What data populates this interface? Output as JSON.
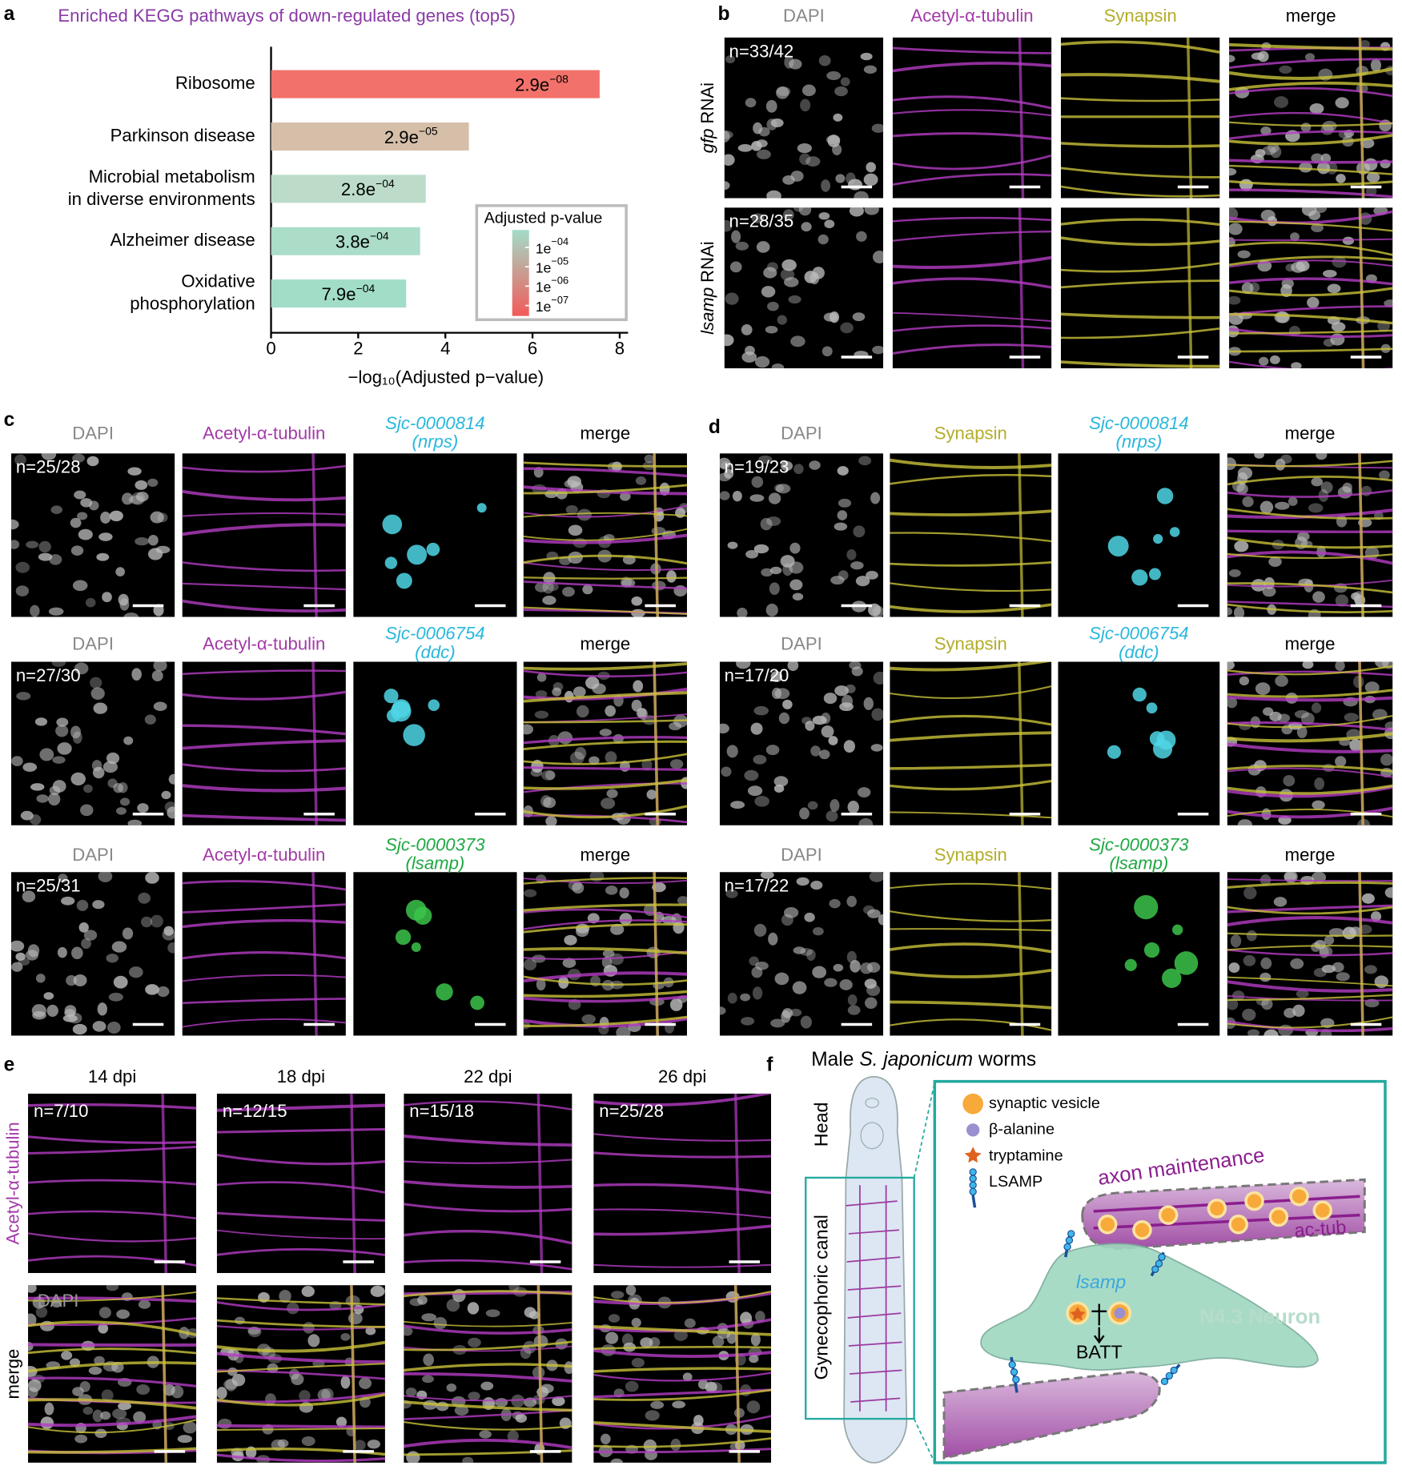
{
  "chart_data": {
    "type": "bar",
    "orientation": "horizontal",
    "title": "Enriched KEGG pathways of down-regulated genes (top5)",
    "categories": [
      "Ribosome",
      "Parkinson disease",
      "Microbial metabolism\nin diverse environments",
      "Alzheimer disease",
      "Oxidative\nphosphorylation"
    ],
    "values": [
      7.54,
      4.54,
      3.55,
      3.42,
      3.1
    ],
    "value_labels": [
      "2.9e−08",
      "2.9e−05",
      "2.8e−04",
      "3.8e−04",
      "7.9e−04"
    ],
    "colors": [
      "#f2716a",
      "#d6bfa9",
      "#bcdcc9",
      "#abddc9",
      "#a2ddc8"
    ],
    "xlim": [
      0,
      8
    ],
    "xticks": [
      0,
      2,
      4,
      6,
      8
    ],
    "xlabel": "−log₁₀(Adjusted p−value)",
    "legend": {
      "title": "Adjusted p-value",
      "lim": [
        0.00079,
        2.9e-08
      ],
      "colors": [
        "#a2ddc8",
        "#f25a5a"
      ],
      "ticks": [
        {
          "value": 0.0001,
          "label": "1e−04"
        },
        {
          "value": 1e-05,
          "label": "1e−05"
        },
        {
          "value": 1e-06,
          "label": "1e−06"
        },
        {
          "value": 1e-07,
          "label": "1e−07"
        }
      ]
    }
  },
  "panel_labels": [
    "a",
    "b",
    "c",
    "d",
    "e",
    "f"
  ],
  "panel_b": {
    "columns": [
      "DAPI",
      "Acetyl-α-tubulin",
      "Synapsin",
      "merge"
    ],
    "rows": [
      {
        "gene": "gfp",
        "suffix": "RNAi",
        "n": "n=33/42"
      },
      {
        "gene": "lsamp",
        "suffix": "RNAi",
        "n": "n=28/35"
      }
    ]
  },
  "panel_c": {
    "rows": [
      {
        "headers": [
          "DAPI",
          "Acetyl-α-tubulin",
          "merge"
        ],
        "probe": "Sjc-0000814",
        "probe_gene": "(nrps)",
        "n": "n=25/28"
      },
      {
        "headers": [
          "DAPI",
          "Acetyl-α-tubulin",
          "merge"
        ],
        "probe": "Sjc-0006754",
        "probe_gene": "(ddc)",
        "n": "n=27/30"
      },
      {
        "headers": [
          "DAPI",
          "Acetyl-α-tubulin",
          "merge"
        ],
        "probe": "Sjc-0000373",
        "probe_gene": "(lsamp)",
        "n": "n=25/31"
      }
    ]
  },
  "panel_d": {
    "rows": [
      {
        "headers": [
          "DAPI",
          "Synapsin",
          "merge"
        ],
        "probe": "Sjc-0000814",
        "probe_gene": "(nrps)",
        "n": "n=19/23"
      },
      {
        "headers": [
          "DAPI",
          "Synapsin",
          "merge"
        ],
        "probe": "Sjc-0006754",
        "probe_gene": "(ddc)",
        "n": "n=17/20"
      },
      {
        "headers": [
          "DAPI",
          "Synapsin",
          "merge"
        ],
        "probe": "Sjc-0000373",
        "probe_gene": "(lsamp)",
        "n": "n=17/22"
      }
    ]
  },
  "panel_e": {
    "columns": [
      "14 dpi",
      "18 dpi",
      "22 dpi",
      "26 dpi"
    ],
    "row_labels": [
      "Acetyl-α-tubulin",
      "merge"
    ],
    "n": [
      "n=7/10",
      "n=12/15",
      "n=15/18",
      "n=25/28"
    ],
    "overlay": "DAPI"
  },
  "panel_f": {
    "title_prefix": "Male",
    "title_species": "S. japonicum",
    "title_suffix": "worms",
    "worm_labels": [
      "Head",
      "Gynecophoric canal"
    ],
    "legend": [
      "synaptic vesicle",
      "β-alanine",
      "tryptamine",
      "LSAMP"
    ],
    "axon": "axon maintenance",
    "actub": "ac-tub",
    "gene": "lsamp",
    "neuron": "N4.3 Neuron",
    "product": "BATT"
  }
}
